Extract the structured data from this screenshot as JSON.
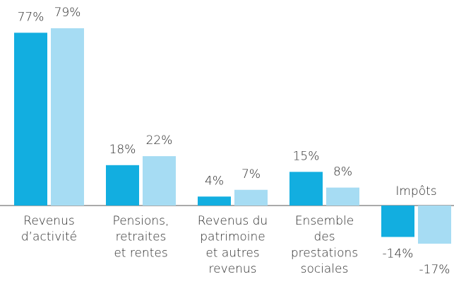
{
  "chart_data": {
    "type": "bar",
    "categories": [
      [
        "Revenus",
        "d’activité"
      ],
      [
        "Pensions,",
        "retraites",
        "et rentes"
      ],
      [
        "Revenus du",
        "patrimoine",
        "et autres",
        "revenus"
      ],
      [
        "Ensemble",
        "des",
        "prestations",
        "sociales"
      ],
      [
        "Impôts"
      ]
    ],
    "series": [
      {
        "color": "#12aee0",
        "values": [
          77,
          18,
          4,
          15,
          -14
        ],
        "value_labels": [
          "77%",
          "18%",
          "4%",
          "15%",
          "-14%"
        ]
      },
      {
        "color": "#a6dcf3",
        "values": [
          79,
          22,
          7,
          8,
          -17
        ],
        "value_labels": [
          "79%",
          "22%",
          "7%",
          "8%",
          "-17%"
        ]
      }
    ]
  }
}
